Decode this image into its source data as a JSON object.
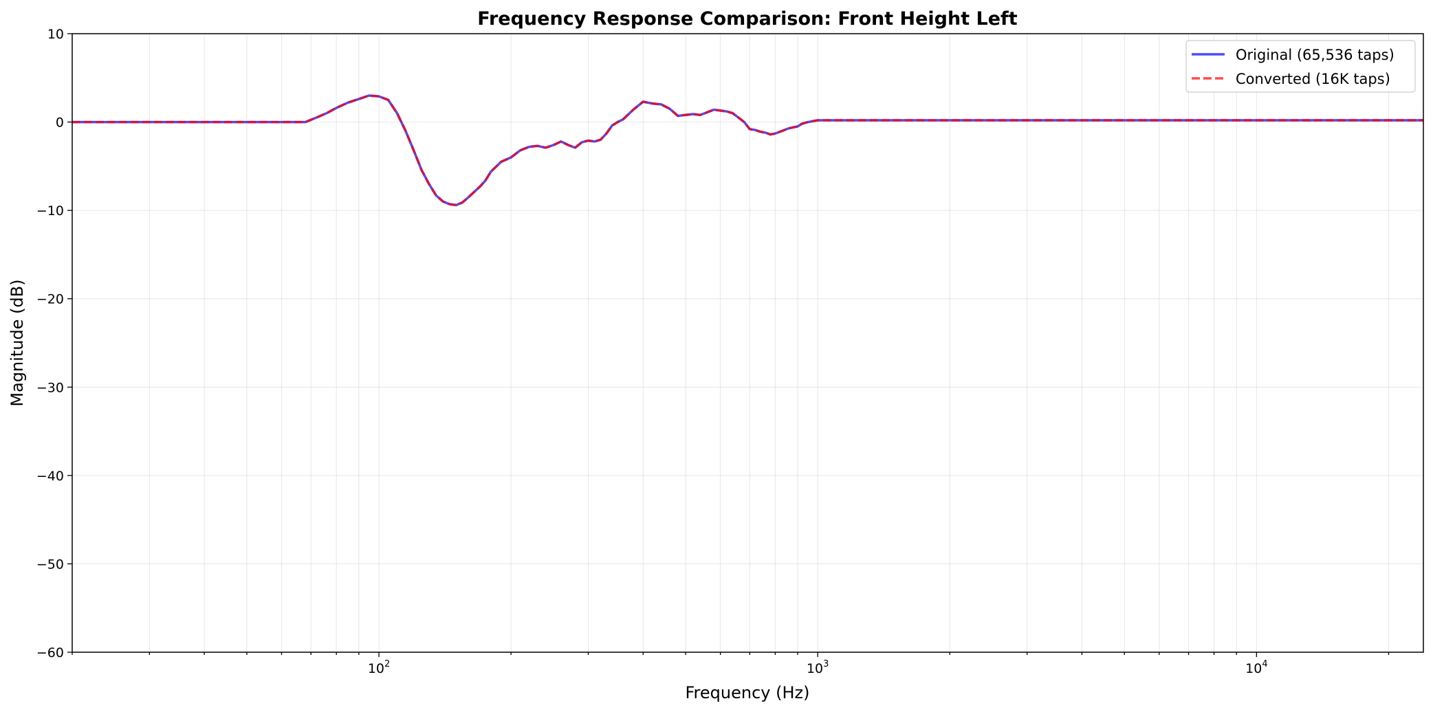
{
  "chart_data": {
    "type": "line",
    "title": "Frequency Response Comparison: Front Height Left",
    "xlabel": "Frequency (Hz)",
    "ylabel": "Magnitude (dB)",
    "xscale": "log",
    "xlim": [
      20,
      24000
    ],
    "ylim": [
      -60,
      10
    ],
    "grid": true,
    "legend_position": "top-right",
    "x_ticks": [
      {
        "value": 100,
        "base": "10",
        "exp": "2"
      },
      {
        "value": 1000,
        "base": "10",
        "exp": "3"
      },
      {
        "value": 10000,
        "base": "10",
        "exp": "4"
      }
    ],
    "y_ticks": [
      {
        "value": 10,
        "label": "10"
      },
      {
        "value": 0,
        "label": "0"
      },
      {
        "value": -10,
        "label": "−10"
      },
      {
        "value": -20,
        "label": "−20"
      },
      {
        "value": -30,
        "label": "−30"
      },
      {
        "value": -40,
        "label": "−40"
      },
      {
        "value": -50,
        "label": "−50"
      },
      {
        "value": -60,
        "label": "−60"
      }
    ],
    "x": [
      20,
      30,
      45,
      60,
      68,
      72,
      76,
      80,
      85,
      90,
      95,
      100,
      105,
      110,
      115,
      120,
      125,
      130,
      135,
      140,
      145,
      150,
      155,
      160,
      165,
      170,
      175,
      180,
      190,
      200,
      210,
      220,
      230,
      240,
      250,
      260,
      270,
      280,
      290,
      300,
      310,
      320,
      330,
      340,
      350,
      360,
      380,
      400,
      420,
      440,
      460,
      480,
      500,
      520,
      540,
      560,
      580,
      600,
      620,
      640,
      660,
      680,
      700,
      720,
      740,
      760,
      780,
      800,
      820,
      840,
      860,
      880,
      900,
      920,
      950,
      1000,
      1500,
      3000,
      10000,
      24000
    ],
    "series": [
      {
        "name": "Original (65,536 taps)",
        "color": "#0000ff",
        "style": "solid",
        "values": [
          0,
          0,
          0,
          0,
          0,
          0.5,
          1.0,
          1.6,
          2.2,
          2.6,
          3.0,
          2.9,
          2.5,
          1.0,
          -1.0,
          -3.2,
          -5.4,
          -7.0,
          -8.3,
          -9.0,
          -9.3,
          -9.4,
          -9.1,
          -8.5,
          -7.9,
          -7.3,
          -6.6,
          -5.6,
          -4.5,
          -4.0,
          -3.2,
          -2.8,
          -2.7,
          -2.9,
          -2.6,
          -2.2,
          -2.6,
          -2.9,
          -2.3,
          -2.1,
          -2.2,
          -2.0,
          -1.3,
          -0.4,
          0.0,
          0.3,
          1.4,
          2.3,
          2.1,
          2.0,
          1.5,
          0.7,
          0.8,
          0.9,
          0.8,
          1.1,
          1.4,
          1.3,
          1.2,
          1.0,
          0.5,
          0.0,
          -0.8,
          -0.9,
          -1.1,
          -1.2,
          -1.4,
          -1.3,
          -1.1,
          -0.9,
          -0.7,
          -0.6,
          -0.5,
          -0.2,
          0.0,
          0.2,
          0.2,
          0.2,
          0.2,
          0.2
        ]
      },
      {
        "name": "Converted (16K taps)",
        "color": "#ff0000",
        "style": "dashed",
        "values": [
          0,
          0,
          0,
          0,
          0,
          0.5,
          1.0,
          1.6,
          2.2,
          2.6,
          3.0,
          2.9,
          2.5,
          1.0,
          -1.0,
          -3.2,
          -5.4,
          -7.0,
          -8.3,
          -9.0,
          -9.3,
          -9.4,
          -9.1,
          -8.5,
          -7.9,
          -7.3,
          -6.6,
          -5.6,
          -4.5,
          -4.0,
          -3.2,
          -2.8,
          -2.7,
          -2.9,
          -2.6,
          -2.2,
          -2.6,
          -2.9,
          -2.3,
          -2.1,
          -2.2,
          -2.0,
          -1.3,
          -0.4,
          0.0,
          0.3,
          1.4,
          2.3,
          2.1,
          2.0,
          1.5,
          0.7,
          0.8,
          0.9,
          0.8,
          1.1,
          1.4,
          1.3,
          1.2,
          1.0,
          0.5,
          0.0,
          -0.8,
          -0.9,
          -1.1,
          -1.2,
          -1.4,
          -1.3,
          -1.1,
          -0.9,
          -0.7,
          -0.6,
          -0.5,
          -0.2,
          0.0,
          0.2,
          0.2,
          0.2,
          0.2,
          0.2
        ]
      }
    ]
  }
}
